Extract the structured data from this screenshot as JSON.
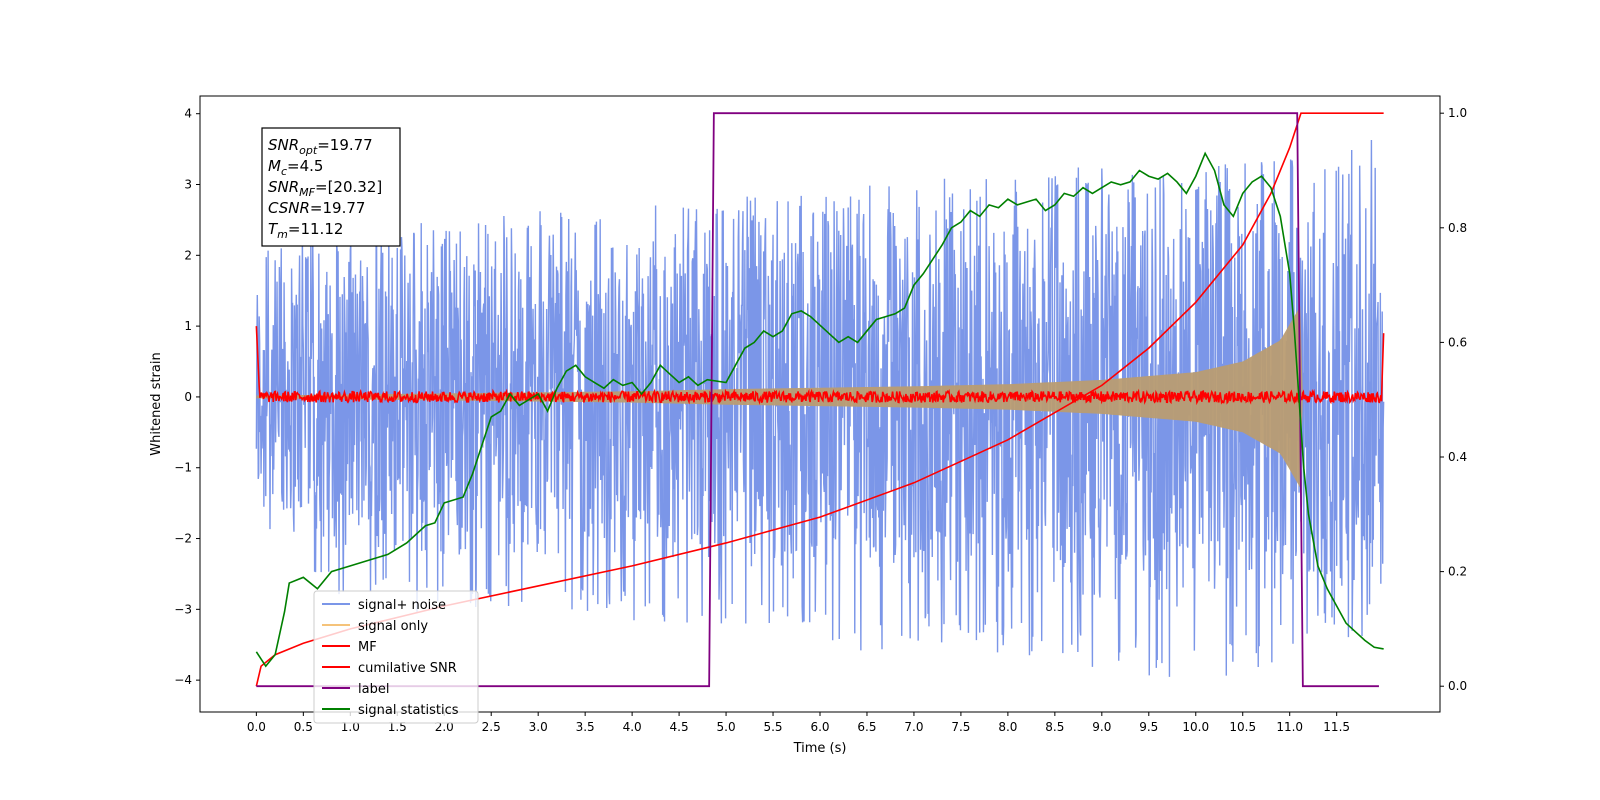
{
  "chart_data": {
    "type": "line",
    "xlabel": "Time (s)",
    "ylabel": "Whitened strain",
    "xlim": [
      -0.6,
      12.6
    ],
    "ylim": [
      -4.45,
      4.25
    ],
    "y2lim": [
      -0.045,
      1.03
    ],
    "x_ticks": [
      "0.0",
      "0.5",
      "1.0",
      "1.5",
      "2.0",
      "2.5",
      "3.0",
      "3.5",
      "4.0",
      "4.5",
      "5.0",
      "5.5",
      "6.0",
      "6.5",
      "7.0",
      "7.5",
      "8.0",
      "8.5",
      "9.0",
      "9.5",
      "10.0",
      "10.5",
      "11.0",
      "11.5"
    ],
    "y_ticks": [
      "4",
      "3",
      "2",
      "1",
      "0",
      "−1",
      "−2",
      "−3",
      "−4"
    ],
    "y2_ticks": [
      "1.0",
      "0.8",
      "0.6",
      "0.4",
      "0.2",
      "0.0"
    ],
    "grid": false,
    "legend_position": "lower-left",
    "annotation": {
      "lines": [
        {
          "base": "SNR",
          "sub": "opt",
          "value": "=19.77"
        },
        {
          "base": "M",
          "sub": "c",
          "value": "=4.5"
        },
        {
          "base": "SNR",
          "sub": "MF",
          "value": "=[20.32]"
        },
        {
          "base": "CSNR",
          "sub": "",
          "value": "=19.77"
        },
        {
          "base": "T",
          "sub": "m",
          "value": "=11.12"
        }
      ]
    },
    "series": [
      {
        "name": "signal+ noise",
        "color": "#7b96e8",
        "axis": "left",
        "kind": "noise_band",
        "x_range": [
          0.0,
          12.0
        ],
        "upper_envelope": [
          2.2,
          2.3,
          2.5,
          2.6,
          2.7,
          2.8,
          2.9,
          3.0,
          3.1,
          3.2,
          3.3,
          3.3,
          3.4,
          3.8
        ],
        "lower_envelope": [
          -2.5,
          -2.9,
          -3.1,
          -3.0,
          -3.1,
          -3.3,
          -3.4,
          -3.6,
          -3.5,
          -3.7,
          -3.9,
          -4.2,
          -3.6,
          -3.4
        ]
      },
      {
        "name": "signal only",
        "color": "#f5c37a",
        "axis": "left",
        "kind": "chirp_envelope",
        "amplitude_points": [
          [
            0.0,
            0.02
          ],
          [
            2.0,
            0.05
          ],
          [
            4.0,
            0.08
          ],
          [
            5.0,
            0.11
          ],
          [
            7.0,
            0.15
          ],
          [
            8.0,
            0.18
          ],
          [
            9.0,
            0.24
          ],
          [
            10.0,
            0.35
          ],
          [
            10.5,
            0.5
          ],
          [
            10.9,
            0.8
          ],
          [
            11.12,
            1.3
          ],
          [
            11.14,
            0.0
          ]
        ]
      },
      {
        "name": "MF",
        "color": "#ff0000",
        "axis": "left",
        "kind": "noisy_flat",
        "baseline": 0.0,
        "noise_amplitude": 0.08,
        "edge_points": [
          [
            0.0,
            1.0
          ],
          [
            0.03,
            0.15
          ],
          [
            11.98,
            0.1
          ],
          [
            12.0,
            0.9
          ]
        ]
      },
      {
        "name": "cumilative SNR",
        "color": "#ff0000",
        "axis": "right",
        "points": [
          [
            0.0,
            0.0
          ],
          [
            0.05,
            0.035
          ],
          [
            0.2,
            0.055
          ],
          [
            0.5,
            0.075
          ],
          [
            1.0,
            0.1
          ],
          [
            2.0,
            0.14
          ],
          [
            3.0,
            0.175
          ],
          [
            4.0,
            0.21
          ],
          [
            5.0,
            0.25
          ],
          [
            6.0,
            0.295
          ],
          [
            7.0,
            0.355
          ],
          [
            8.0,
            0.43
          ],
          [
            9.0,
            0.525
          ],
          [
            9.5,
            0.59
          ],
          [
            10.0,
            0.67
          ],
          [
            10.5,
            0.77
          ],
          [
            10.8,
            0.86
          ],
          [
            11.0,
            0.94
          ],
          [
            11.1,
            0.99
          ],
          [
            11.12,
            1.0
          ],
          [
            12.0,
            1.0
          ]
        ]
      },
      {
        "name": "label",
        "color": "#800080",
        "axis": "right",
        "points": [
          [
            0.0,
            0.0
          ],
          [
            4.82,
            0.0
          ],
          [
            4.87,
            1.0
          ],
          [
            11.08,
            1.0
          ],
          [
            11.14,
            0.0
          ],
          [
            11.95,
            0.0
          ]
        ]
      },
      {
        "name": "signal statistics",
        "color": "#008000",
        "axis": "right",
        "points": [
          [
            0.0,
            0.06
          ],
          [
            0.1,
            0.035
          ],
          [
            0.2,
            0.055
          ],
          [
            0.3,
            0.13
          ],
          [
            0.35,
            0.18
          ],
          [
            0.5,
            0.19
          ],
          [
            0.65,
            0.17
          ],
          [
            0.8,
            0.2
          ],
          [
            1.0,
            0.21
          ],
          [
            1.2,
            0.22
          ],
          [
            1.4,
            0.23
          ],
          [
            1.6,
            0.25
          ],
          [
            1.8,
            0.28
          ],
          [
            1.9,
            0.285
          ],
          [
            2.0,
            0.32
          ],
          [
            2.2,
            0.33
          ],
          [
            2.3,
            0.37
          ],
          [
            2.4,
            0.42
          ],
          [
            2.5,
            0.47
          ],
          [
            2.6,
            0.48
          ],
          [
            2.7,
            0.51
          ],
          [
            2.8,
            0.49
          ],
          [
            2.9,
            0.5
          ],
          [
            3.0,
            0.51
          ],
          [
            3.1,
            0.48
          ],
          [
            3.2,
            0.52
          ],
          [
            3.3,
            0.55
          ],
          [
            3.4,
            0.56
          ],
          [
            3.5,
            0.54
          ],
          [
            3.6,
            0.53
          ],
          [
            3.7,
            0.52
          ],
          [
            3.8,
            0.535
          ],
          [
            3.9,
            0.525
          ],
          [
            4.0,
            0.53
          ],
          [
            4.1,
            0.51
          ],
          [
            4.2,
            0.53
          ],
          [
            4.3,
            0.56
          ],
          [
            4.4,
            0.545
          ],
          [
            4.5,
            0.53
          ],
          [
            4.6,
            0.54
          ],
          [
            4.7,
            0.525
          ],
          [
            4.8,
            0.535
          ],
          [
            5.0,
            0.53
          ],
          [
            5.1,
            0.56
          ],
          [
            5.2,
            0.59
          ],
          [
            5.3,
            0.6
          ],
          [
            5.4,
            0.62
          ],
          [
            5.5,
            0.61
          ],
          [
            5.6,
            0.62
          ],
          [
            5.7,
            0.65
          ],
          [
            5.8,
            0.655
          ],
          [
            5.9,
            0.645
          ],
          [
            6.0,
            0.63
          ],
          [
            6.1,
            0.615
          ],
          [
            6.2,
            0.6
          ],
          [
            6.3,
            0.61
          ],
          [
            6.4,
            0.6
          ],
          [
            6.5,
            0.62
          ],
          [
            6.6,
            0.64
          ],
          [
            6.7,
            0.645
          ],
          [
            6.8,
            0.65
          ],
          [
            6.9,
            0.66
          ],
          [
            7.0,
            0.7
          ],
          [
            7.1,
            0.72
          ],
          [
            7.2,
            0.745
          ],
          [
            7.3,
            0.77
          ],
          [
            7.4,
            0.8
          ],
          [
            7.5,
            0.81
          ],
          [
            7.6,
            0.83
          ],
          [
            7.7,
            0.82
          ],
          [
            7.8,
            0.84
          ],
          [
            7.9,
            0.835
          ],
          [
            8.0,
            0.85
          ],
          [
            8.1,
            0.84
          ],
          [
            8.2,
            0.845
          ],
          [
            8.3,
            0.85
          ],
          [
            8.4,
            0.83
          ],
          [
            8.5,
            0.84
          ],
          [
            8.6,
            0.86
          ],
          [
            8.7,
            0.855
          ],
          [
            8.8,
            0.87
          ],
          [
            8.9,
            0.86
          ],
          [
            9.0,
            0.87
          ],
          [
            9.1,
            0.88
          ],
          [
            9.2,
            0.875
          ],
          [
            9.3,
            0.88
          ],
          [
            9.4,
            0.9
          ],
          [
            9.5,
            0.89
          ],
          [
            9.6,
            0.885
          ],
          [
            9.7,
            0.895
          ],
          [
            9.8,
            0.88
          ],
          [
            9.9,
            0.86
          ],
          [
            10.0,
            0.89
          ],
          [
            10.1,
            0.93
          ],
          [
            10.2,
            0.9
          ],
          [
            10.3,
            0.84
          ],
          [
            10.4,
            0.82
          ],
          [
            10.5,
            0.86
          ],
          [
            10.6,
            0.88
          ],
          [
            10.7,
            0.89
          ],
          [
            10.8,
            0.87
          ],
          [
            10.9,
            0.82
          ],
          [
            11.0,
            0.72
          ],
          [
            11.05,
            0.62
          ],
          [
            11.1,
            0.5
          ],
          [
            11.15,
            0.38
          ],
          [
            11.2,
            0.3
          ],
          [
            11.3,
            0.21
          ],
          [
            11.4,
            0.17
          ],
          [
            11.5,
            0.14
          ],
          [
            11.6,
            0.11
          ],
          [
            11.7,
            0.095
          ],
          [
            11.8,
            0.08
          ],
          [
            11.9,
            0.068
          ],
          [
            12.0,
            0.065
          ]
        ]
      }
    ]
  }
}
